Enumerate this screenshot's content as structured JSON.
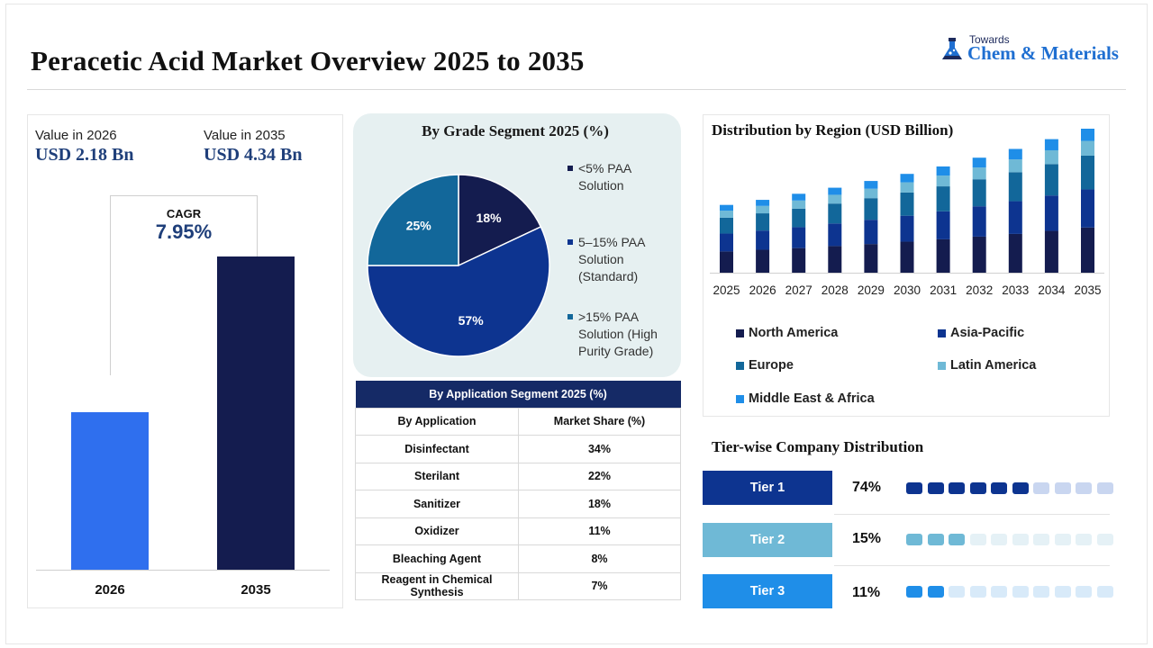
{
  "header": {
    "title": "Peracetic Acid Market Overview 2025 to 2035",
    "logo_small": "Towards",
    "logo_big": "Chem & Materials"
  },
  "overview": {
    "value_2026_label": "Value in 2026",
    "value_2026": "USD 2.18 Bn",
    "value_2035_label": "Value in 2035",
    "value_2035": "USD 4.34 Bn",
    "cagr_label": "CAGR",
    "cagr_value": "7.95%",
    "bars": [
      {
        "label": "2026",
        "value": 2.18,
        "color": "#2f6fee"
      },
      {
        "label": "2035",
        "value": 4.34,
        "color": "#141c4f"
      }
    ]
  },
  "chart_data": [
    {
      "type": "bar",
      "title": "",
      "categories": [
        "2026",
        "2035"
      ],
      "values": [
        2.18,
        4.34
      ],
      "unit": "USD Bn"
    },
    {
      "type": "pie",
      "title": "By Grade Segment 2025 (%)",
      "slices": [
        {
          "name": "<5% PAA Solution",
          "value": 18,
          "label": "18%",
          "color": "#141c4f"
        },
        {
          "name": "5–15% PAA Solution (Standard)",
          "value": 57,
          "label": "57%",
          "color": "#0d3490"
        },
        {
          "name": ">15% PAA Solution (High Purity Grade)",
          "value": 25,
          "label": "25%",
          "color": "#12679a"
        }
      ]
    },
    {
      "type": "bar",
      "stacked": true,
      "title": "Distribution by Region (USD Billion)",
      "categories": [
        "2025",
        "2026",
        "2027",
        "2028",
        "2029",
        "2030",
        "2031",
        "2032",
        "2033",
        "2034",
        "2035"
      ],
      "series": [
        {
          "name": "North America",
          "color": "#141c4f",
          "values": [
            0.63,
            0.68,
            0.73,
            0.79,
            0.85,
            0.92,
            0.99,
            1.07,
            1.15,
            1.24,
            1.34
          ]
        },
        {
          "name": "Asia-Pacific",
          "color": "#0d3490",
          "values": [
            0.53,
            0.57,
            0.62,
            0.67,
            0.72,
            0.77,
            0.83,
            0.9,
            0.97,
            1.05,
            1.13
          ]
        },
        {
          "name": "Europe",
          "color": "#12679a",
          "values": [
            0.47,
            0.51,
            0.55,
            0.59,
            0.64,
            0.69,
            0.74,
            0.8,
            0.86,
            0.93,
            1.0
          ]
        },
        {
          "name": "Latin America",
          "color": "#6fb9d6",
          "values": [
            0.21,
            0.22,
            0.24,
            0.26,
            0.28,
            0.3,
            0.32,
            0.35,
            0.38,
            0.41,
            0.44
          ]
        },
        {
          "name": "Middle East & Africa",
          "color": "#1f8ee8",
          "values": [
            0.17,
            0.18,
            0.2,
            0.21,
            0.23,
            0.25,
            0.27,
            0.29,
            0.31,
            0.33,
            0.36
          ]
        }
      ]
    }
  ],
  "application_table": {
    "title": "By Application Segment 2025 (%)",
    "col1": "By Application",
    "col2": "Market Share (%)",
    "rows": [
      {
        "name": "Disinfectant",
        "share": "34%"
      },
      {
        "name": "Sterilant",
        "share": "22%"
      },
      {
        "name": "Sanitizer",
        "share": "18%"
      },
      {
        "name": "Oxidizer",
        "share": "11%"
      },
      {
        "name": "Bleaching Agent",
        "share": "8%"
      },
      {
        "name": "Reagent in Chemical Synthesis",
        "share": "7%"
      }
    ]
  },
  "tiers": {
    "title": "Tier-wise Company Distribution",
    "items": [
      {
        "label": "Tier 1",
        "pct": "74%",
        "value": 74,
        "color": "#0d3490",
        "light": "#c9d6f0",
        "filled": 6
      },
      {
        "label": "Tier 2",
        "pct": "15%",
        "value": 15,
        "color": "#6fb9d6",
        "light": "#e5f1f6",
        "filled": 3
      },
      {
        "label": "Tier 3",
        "pct": "11%",
        "value": 11,
        "color": "#1f8ee8",
        "light": "#d8eaf9",
        "filled": 2
      }
    ]
  }
}
